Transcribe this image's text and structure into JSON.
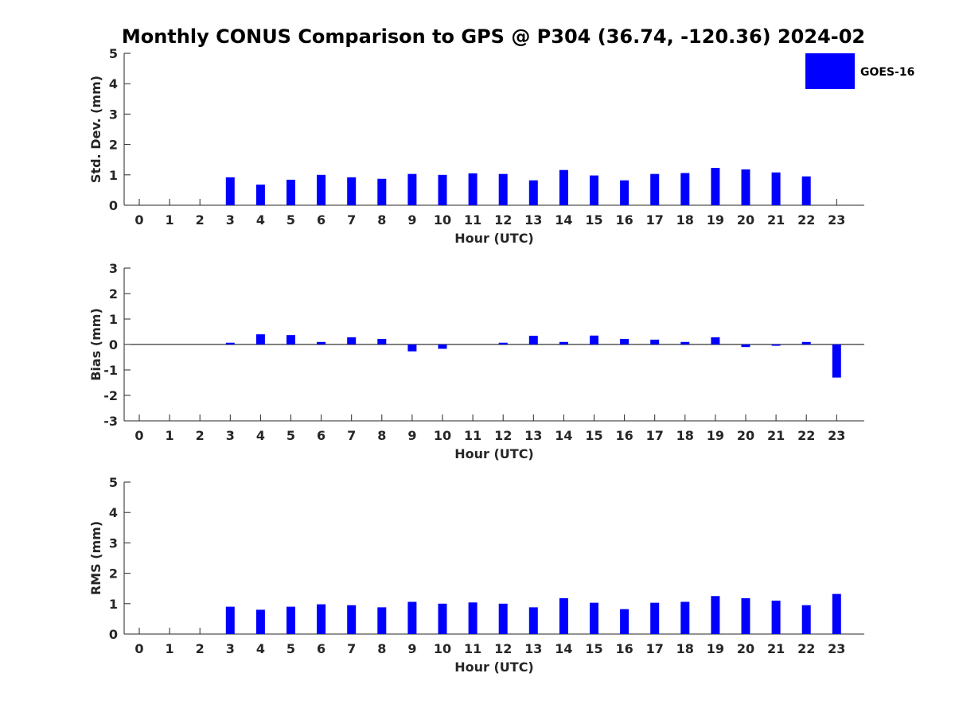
{
  "chart_data": {
    "title": "Monthly CONUS Comparison to GPS @ P304 (36.74, -120.36) 2024-02",
    "colors": {
      "bar": "#0000ff",
      "axis": "#262626"
    },
    "legend": {
      "label": "GOES-16",
      "position": "top-right"
    },
    "panels": [
      {
        "type": "bar",
        "ylabel": "Std. Dev. (mm)",
        "xlabel": "Hour (UTC)",
        "ylim": [
          0,
          5
        ],
        "yticks": [
          "0",
          "1",
          "2",
          "3",
          "4",
          "5"
        ],
        "categories": [
          "0",
          "1",
          "2",
          "3",
          "4",
          "5",
          "6",
          "7",
          "8",
          "9",
          "10",
          "11",
          "12",
          "13",
          "14",
          "15",
          "16",
          "17",
          "18",
          "19",
          "20",
          "21",
          "22",
          "23"
        ],
        "values": [
          null,
          null,
          null,
          0.92,
          0.68,
          0.84,
          1.0,
          0.92,
          0.87,
          1.03,
          1.0,
          1.05,
          1.03,
          0.82,
          1.16,
          0.98,
          0.82,
          1.03,
          1.06,
          1.23,
          1.18,
          1.08,
          0.95,
          null
        ]
      },
      {
        "type": "bar",
        "ylabel": "Bias (mm)",
        "xlabel": "Hour (UTC)",
        "ylim": [
          -3,
          3
        ],
        "yticks": [
          "-3",
          "-2",
          "-1",
          "0",
          "1",
          "2",
          "3"
        ],
        "categories": [
          "0",
          "1",
          "2",
          "3",
          "4",
          "5",
          "6",
          "7",
          "8",
          "9",
          "10",
          "11",
          "12",
          "13",
          "14",
          "15",
          "16",
          "17",
          "18",
          "19",
          "20",
          "21",
          "22",
          "23"
        ],
        "values": [
          null,
          null,
          null,
          0.07,
          0.4,
          0.37,
          0.1,
          0.28,
          0.22,
          -0.27,
          -0.17,
          0.0,
          0.07,
          0.34,
          0.1,
          0.35,
          0.22,
          0.19,
          0.1,
          0.28,
          -0.1,
          -0.05,
          0.1,
          -1.3
        ]
      },
      {
        "type": "bar",
        "ylabel": "RMS (mm)",
        "xlabel": "Hour (UTC)",
        "ylim": [
          0,
          5
        ],
        "yticks": [
          "0",
          "1",
          "2",
          "3",
          "4",
          "5"
        ],
        "categories": [
          "0",
          "1",
          "2",
          "3",
          "4",
          "5",
          "6",
          "7",
          "8",
          "9",
          "10",
          "11",
          "12",
          "13",
          "14",
          "15",
          "16",
          "17",
          "18",
          "19",
          "20",
          "21",
          "22",
          "23"
        ],
        "values": [
          null,
          null,
          null,
          0.9,
          0.8,
          0.9,
          0.98,
          0.95,
          0.88,
          1.06,
          1.0,
          1.04,
          1.0,
          0.88,
          1.18,
          1.03,
          0.82,
          1.03,
          1.06,
          1.25,
          1.18,
          1.1,
          0.95,
          1.32
        ]
      }
    ]
  }
}
